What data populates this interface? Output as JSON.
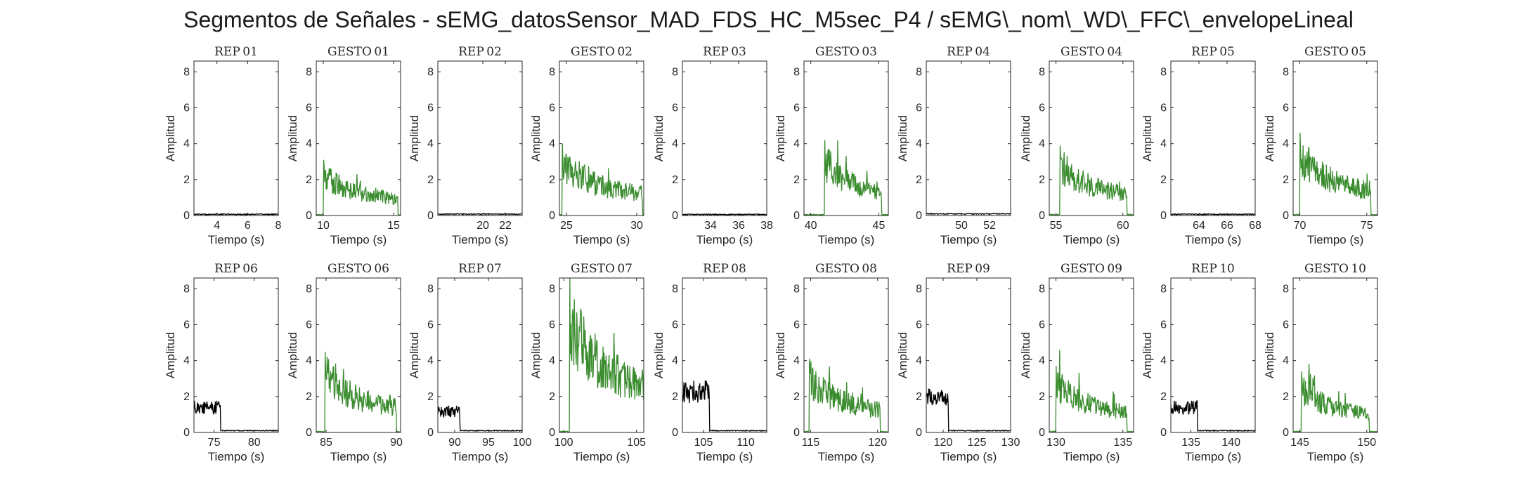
{
  "title": "Segmentos de Señales - sEMG_datosSensor_MAD_FDS_HC_M5sec_P4 / sEMG\\_nom\\_WD\\_FFC\\_envelopeLineal",
  "colors": {
    "rep": "#000000",
    "gesto": "#3a8c2e",
    "axes": "#262626"
  },
  "chart_data": [
    {
      "type": "line",
      "title": "REP_01",
      "category": "rep",
      "xlim": [
        2.5,
        8
      ],
      "xticks": [
        4,
        6,
        8
      ],
      "ylim": [
        0,
        8.6
      ],
      "yticks": [
        0,
        2,
        4,
        6,
        8
      ],
      "xlabel": "Tiempo (s)",
      "ylabel": "Amplitud",
      "pattern": "flat",
      "base": 0.07
    },
    {
      "type": "line",
      "title": "GESTO_01",
      "category": "gesto",
      "xlim": [
        9.5,
        15.5
      ],
      "xticks": [
        10,
        15
      ],
      "ylim": [
        0,
        8.6
      ],
      "yticks": [
        0,
        2,
        4,
        6,
        8
      ],
      "xlabel": "Tiempo (s)",
      "ylabel": "Amplitud",
      "pattern": "burst",
      "start": 10,
      "end": 15.3,
      "peak": 3.1,
      "base": 0.05
    },
    {
      "type": "line",
      "title": "REP_02",
      "category": "rep",
      "xlim": [
        16,
        23.5
      ],
      "xticks": [
        20,
        22
      ],
      "ylim": [
        0,
        8.6
      ],
      "yticks": [
        0,
        2,
        4,
        6,
        8
      ],
      "xlabel": "Tiempo (s)",
      "ylabel": "Amplitud",
      "pattern": "flat",
      "base": 0.08
    },
    {
      "type": "line",
      "title": "GESTO_02",
      "category": "gesto",
      "xlim": [
        24.5,
        30.5
      ],
      "xticks": [
        25,
        30
      ],
      "ylim": [
        0,
        8.6
      ],
      "yticks": [
        0,
        2,
        4,
        6,
        8
      ],
      "xlabel": "Tiempo (s)",
      "ylabel": "Amplitud",
      "pattern": "burst",
      "start": 24.7,
      "end": 30.4,
      "peak": 4.0,
      "base": 0.05
    },
    {
      "type": "line",
      "title": "REP_03",
      "category": "rep",
      "xlim": [
        32,
        38
      ],
      "xticks": [
        34,
        36,
        38
      ],
      "ylim": [
        0,
        8.6
      ],
      "yticks": [
        0,
        2,
        4,
        6,
        8
      ],
      "xlabel": "Tiempo (s)",
      "ylabel": "Amplitud",
      "pattern": "flat",
      "base": 0.06
    },
    {
      "type": "line",
      "title": "GESTO_03",
      "category": "gesto",
      "xlim": [
        39.5,
        45.7
      ],
      "xticks": [
        40,
        45
      ],
      "ylim": [
        0,
        8.6
      ],
      "yticks": [
        0,
        2,
        4,
        6,
        8
      ],
      "xlabel": "Tiempo (s)",
      "ylabel": "Amplitud",
      "pattern": "burst",
      "start": 41.0,
      "end": 45.2,
      "peak": 4.2,
      "base": 0.05
    },
    {
      "type": "line",
      "title": "REP_04",
      "category": "rep",
      "xlim": [
        47.5,
        53.5
      ],
      "xticks": [
        50,
        52
      ],
      "ylim": [
        0,
        8.6
      ],
      "yticks": [
        0,
        2,
        4,
        6,
        8
      ],
      "xlabel": "Tiempo (s)",
      "ylabel": "Amplitud",
      "pattern": "flat",
      "base": 0.09
    },
    {
      "type": "line",
      "title": "GESTO_04",
      "category": "gesto",
      "xlim": [
        54.5,
        60.8
      ],
      "xticks": [
        55,
        60
      ],
      "ylim": [
        0,
        8.6
      ],
      "yticks": [
        0,
        2,
        4,
        6,
        8
      ],
      "xlabel": "Tiempo (s)",
      "ylabel": "Amplitud",
      "pattern": "burst",
      "start": 55.3,
      "end": 60.3,
      "peak": 3.9,
      "base": 0.05
    },
    {
      "type": "line",
      "title": "REP_05",
      "category": "rep",
      "xlim": [
        62,
        68
      ],
      "xticks": [
        64,
        66,
        68
      ],
      "ylim": [
        0,
        8.6
      ],
      "yticks": [
        0,
        2,
        4,
        6,
        8
      ],
      "xlabel": "Tiempo (s)",
      "ylabel": "Amplitud",
      "pattern": "flat",
      "base": 0.07
    },
    {
      "type": "line",
      "title": "GESTO_05",
      "category": "gesto",
      "xlim": [
        69.5,
        75.8
      ],
      "xticks": [
        70,
        75
      ],
      "ylim": [
        0,
        8.6
      ],
      "yticks": [
        0,
        2,
        4,
        6,
        8
      ],
      "xlabel": "Tiempo (s)",
      "ylabel": "Amplitud",
      "pattern": "burst",
      "start": 70.0,
      "end": 75.3,
      "peak": 4.6,
      "base": 0.05
    },
    {
      "type": "line",
      "title": "REP_06",
      "category": "rep",
      "xlim": [
        72.5,
        83
      ],
      "xticks": [
        75,
        80
      ],
      "ylim": [
        0,
        8.6
      ],
      "yticks": [
        0,
        2,
        4,
        6,
        8
      ],
      "xlabel": "Tiempo (s)",
      "ylabel": "Amplitud",
      "pattern": "rep_active",
      "active_end": 75.8,
      "peak": 1.8,
      "base": 0.1
    },
    {
      "type": "line",
      "title": "GESTO_06",
      "category": "gesto",
      "xlim": [
        84.3,
        90.3
      ],
      "xticks": [
        85,
        90
      ],
      "ylim": [
        0,
        8.6
      ],
      "yticks": [
        0,
        2,
        4,
        6,
        8
      ],
      "xlabel": "Tiempo (s)",
      "ylabel": "Amplitud",
      "pattern": "burst",
      "start": 84.9,
      "end": 90.0,
      "peak": 4.5,
      "base": 0.05
    },
    {
      "type": "line",
      "title": "REP_07",
      "category": "rep",
      "xlim": [
        87.5,
        100
      ],
      "xticks": [
        90,
        95,
        100
      ],
      "ylim": [
        0,
        8.6
      ],
      "yticks": [
        0,
        2,
        4,
        6,
        8
      ],
      "xlabel": "Tiempo (s)",
      "ylabel": "Amplitud",
      "pattern": "rep_active",
      "active_end": 90.8,
      "peak": 1.5,
      "base": 0.1
    },
    {
      "type": "line",
      "title": "GESTO_07",
      "category": "gesto",
      "xlim": [
        99.7,
        105.5
      ],
      "xticks": [
        100,
        105
      ],
      "ylim": [
        0,
        8.6
      ],
      "yticks": [
        0,
        2,
        4,
        6,
        8
      ],
      "xlabel": "Tiempo (s)",
      "ylabel": "Amplitud",
      "pattern": "burst",
      "start": 100.4,
      "end": 105.5,
      "peak": 8.6,
      "base": 0.05
    },
    {
      "type": "line",
      "title": "REP_08",
      "category": "rep",
      "xlim": [
        102.5,
        112.5
      ],
      "xticks": [
        105,
        110
      ],
      "ylim": [
        0,
        8.6
      ],
      "yticks": [
        0,
        2,
        4,
        6,
        8
      ],
      "xlabel": "Tiempo (s)",
      "ylabel": "Amplitud",
      "pattern": "rep_active",
      "active_end": 105.7,
      "peak": 2.9,
      "base": 0.1
    },
    {
      "type": "line",
      "title": "GESTO_08",
      "category": "gesto",
      "xlim": [
        114.5,
        120.8
      ],
      "xticks": [
        115,
        120
      ],
      "ylim": [
        0,
        8.6
      ],
      "yticks": [
        0,
        2,
        4,
        6,
        8
      ],
      "xlabel": "Tiempo (s)",
      "ylabel": "Amplitud",
      "pattern": "burst",
      "start": 114.9,
      "end": 120.2,
      "peak": 4.1,
      "base": 0.05
    },
    {
      "type": "line",
      "title": "REP_09",
      "category": "rep",
      "xlim": [
        117.5,
        130
      ],
      "xticks": [
        120,
        125,
        130
      ],
      "ylim": [
        0,
        8.6
      ],
      "yticks": [
        0,
        2,
        4,
        6,
        8
      ],
      "xlabel": "Tiempo (s)",
      "ylabel": "Amplitud",
      "pattern": "rep_active",
      "active_end": 120.8,
      "peak": 2.5,
      "base": 0.1
    },
    {
      "type": "line",
      "title": "GESTO_09",
      "category": "gesto",
      "xlim": [
        129.5,
        135.8
      ],
      "xticks": [
        130,
        135
      ],
      "ylim": [
        0,
        8.6
      ],
      "yticks": [
        0,
        2,
        4,
        6,
        8
      ],
      "xlabel": "Tiempo (s)",
      "ylabel": "Amplitud",
      "pattern": "burst",
      "start": 130.0,
      "end": 135.3,
      "peak": 3.7,
      "base": 0.05
    },
    {
      "type": "line",
      "title": "REP_10",
      "category": "rep",
      "xlim": [
        132.5,
        143
      ],
      "xticks": [
        135,
        140
      ],
      "ylim": [
        0,
        8.6
      ],
      "yticks": [
        0,
        2,
        4,
        6,
        8
      ],
      "xlabel": "Tiempo (s)",
      "ylabel": "Amplitud",
      "pattern": "rep_active",
      "active_end": 135.8,
      "peak": 1.8,
      "base": 0.1
    },
    {
      "type": "line",
      "title": "GESTO_10",
      "category": "gesto",
      "xlim": [
        144.5,
        150.8
      ],
      "xticks": [
        145,
        150
      ],
      "ylim": [
        0,
        8.6
      ],
      "yticks": [
        0,
        2,
        4,
        6,
        8
      ],
      "xlabel": "Tiempo (s)",
      "ylabel": "Amplitud",
      "pattern": "burst",
      "start": 145.1,
      "end": 150.2,
      "peak": 3.4,
      "base": 0.05
    }
  ]
}
